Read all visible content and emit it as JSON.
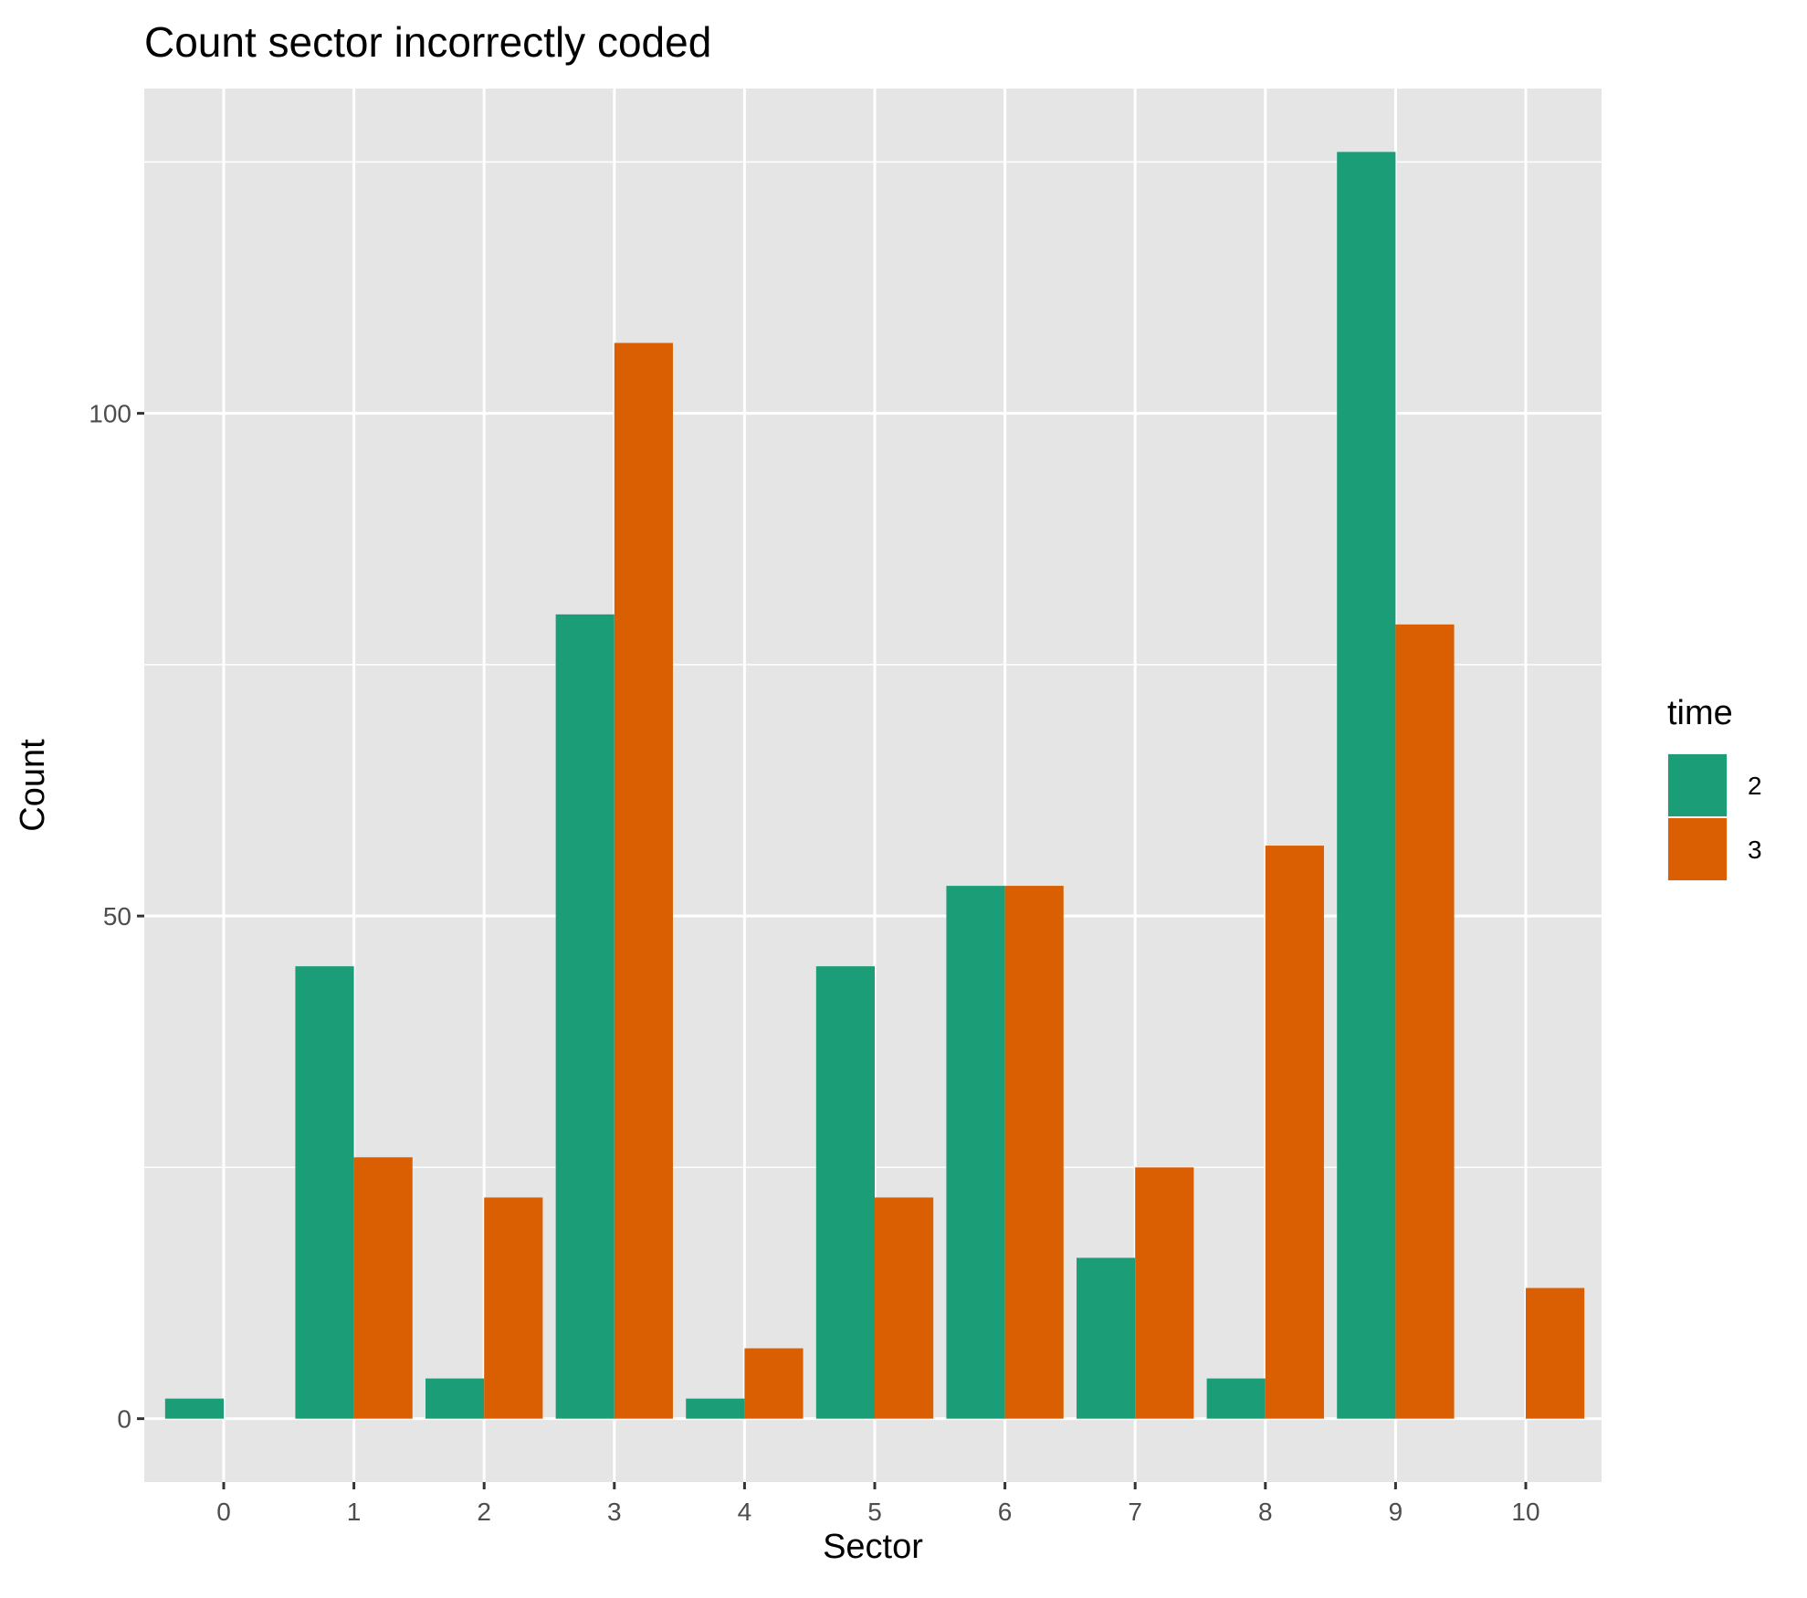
{
  "chart_data": {
    "type": "bar",
    "title": "Count sector incorrectly coded",
    "xlabel": "Sector",
    "ylabel": "Count",
    "categories": [
      "0",
      "1",
      "2",
      "3",
      "4",
      "5",
      "6",
      "7",
      "8",
      "9",
      "10"
    ],
    "series": [
      {
        "name": "2",
        "color": "#1B9E77",
        "values": [
          2,
          45,
          4,
          80,
          2,
          45,
          53,
          16,
          4,
          126,
          0
        ]
      },
      {
        "name": "3",
        "color": "#D95F02",
        "values": [
          0,
          26,
          22,
          107,
          7,
          22,
          53,
          25,
          57,
          79,
          13
        ]
      }
    ],
    "yticks": [
      0,
      50,
      100
    ],
    "ylim": [
      -6.3,
      132.3
    ],
    "legend": {
      "title": "time",
      "position": "right"
    },
    "grid": true,
    "panel_background": "#E5E5E5"
  }
}
